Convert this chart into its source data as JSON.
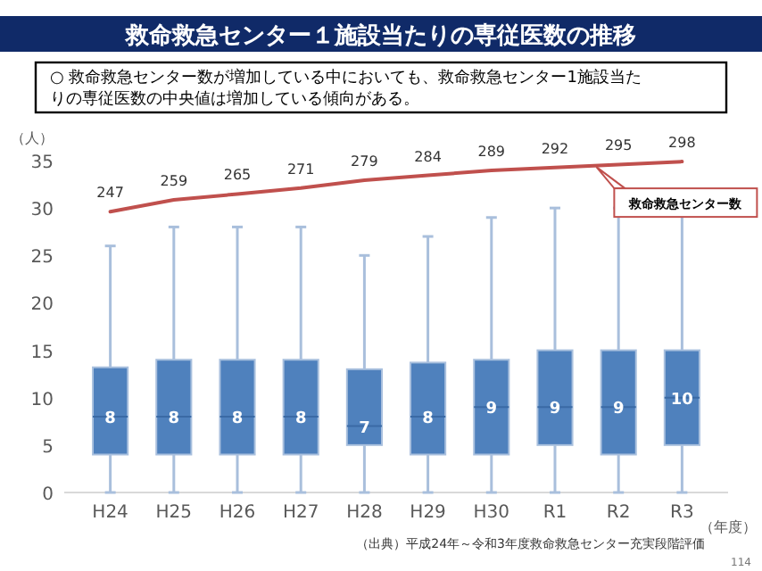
{
  "chart_data": {
    "type": "box",
    "title": "救命救急センター１施設当たりの専従医数の推移",
    "subtitle": "○  救命救急センター数が増加している中においても、救命救急センター1施設当たりの専従医数の中央値は増加している傾向がある。",
    "ylabel": "（人）",
    "xlabel": "（年度）",
    "categories": [
      "H24",
      "H25",
      "H26",
      "H27",
      "H28",
      "H29",
      "H30",
      "R1",
      "R2",
      "R3"
    ],
    "ylim": [
      0,
      35
    ],
    "yticks": [
      0,
      5,
      10,
      15,
      20,
      25,
      30,
      35
    ],
    "tick_labels": "xy",
    "grid": false,
    "data_labels": true,
    "series": [
      {
        "color": "#4f81bd",
        "value_labels": [
          "8",
          "8",
          "8",
          "8",
          "7",
          "8",
          "9",
          "9",
          "9",
          "10"
        ],
        "boxes": [
          {
            "low": 0,
            "q1": 4,
            "median": 8,
            "q3": 13.2,
            "high": 26
          },
          {
            "low": 0,
            "q1": 4,
            "median": 8,
            "q3": 14,
            "high": 28
          },
          {
            "low": 0,
            "q1": 4,
            "median": 8,
            "q3": 14,
            "high": 28
          },
          {
            "low": 0,
            "q1": 4,
            "median": 8,
            "q3": 14,
            "high": 28
          },
          {
            "low": 0,
            "q1": 5,
            "median": 7,
            "q3": 13,
            "high": 25
          },
          {
            "low": 0,
            "q1": 4,
            "median": 8,
            "q3": 13.7,
            "high": 27
          },
          {
            "low": 0,
            "q1": 4,
            "median": 9,
            "q3": 14,
            "high": 29
          },
          {
            "low": 0,
            "q1": 5,
            "median": 9,
            "q3": 15,
            "high": 30
          },
          {
            "low": 0,
            "q1": 4,
            "median": 9,
            "q3": 15,
            "high": 30
          },
          {
            "low": 0,
            "q1": 5,
            "median": 10,
            "q3": 15,
            "high": 30
          }
        ]
      },
      {
        "type": "line",
        "name": "救命救急センター数",
        "color": "#c0504d",
        "axis": "y2",
        "values": [
          247,
          259,
          265,
          271,
          279,
          284,
          289,
          292,
          295,
          298
        ]
      }
    ],
    "annotations": [
      "（出典）平成24年～令和3年度救命救急センター充実段階評価",
      "114"
    ]
  }
}
